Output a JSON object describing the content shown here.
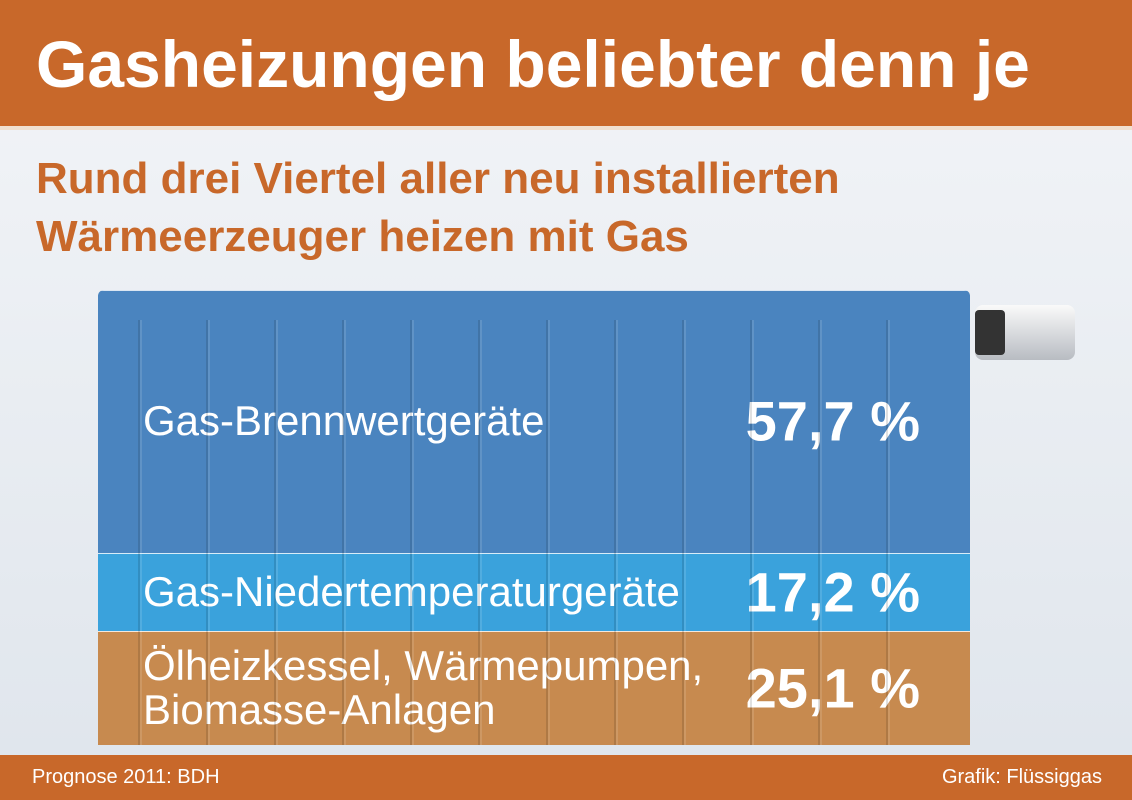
{
  "chart_data": {
    "type": "stacked-bar",
    "title": "Gasheizungen beliebter denn je",
    "subtitle": "Rund drei Viertel aller neu installierten Wärmeerzeuger heizen mit Gas",
    "categories": [
      "Gas-Brennwertgeräte",
      "Gas-Niedertemperaturgeräte",
      "Ölheizkessel, Wärmepumpen, Biomasse-Anlagen"
    ],
    "values": [
      57.7,
      17.2,
      25.1
    ],
    "value_labels": [
      "57,7 %",
      "17,2 %",
      "25,1 %"
    ],
    "colors": [
      "#4a84bf",
      "#3aa2dc",
      "#c78a4f"
    ],
    "ylim": [
      0,
      100
    ],
    "source": "Prognose 2011: BDH",
    "credit": "Grafik: Flüssiggas"
  }
}
